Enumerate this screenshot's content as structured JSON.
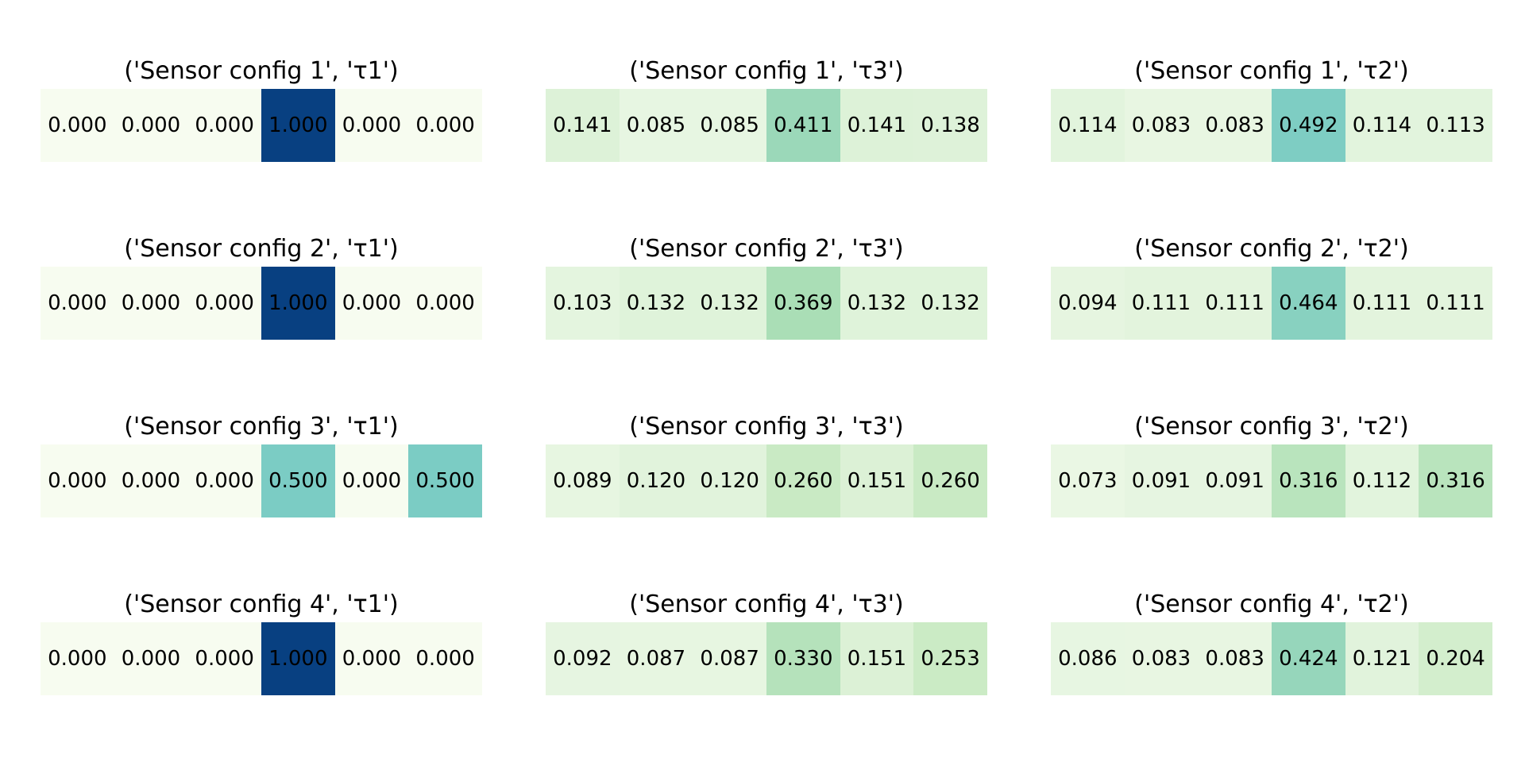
{
  "chart_data": [
    {
      "type": "heatmap",
      "title": "('Sensor config 1', 'τ1')",
      "labels": [
        "0.000",
        "0.000",
        "0.000",
        "1.000",
        "0.000",
        "0.000"
      ],
      "values": [
        0.0,
        0.0,
        0.0,
        1.0,
        0.0,
        0.0
      ]
    },
    {
      "type": "heatmap",
      "title": "('Sensor config 1', 'τ3')",
      "labels": [
        "0.141",
        "0.085",
        "0.085",
        "0.411",
        "0.141",
        "0.138"
      ],
      "values": [
        0.141,
        0.085,
        0.085,
        0.411,
        0.141,
        0.138
      ]
    },
    {
      "type": "heatmap",
      "title": "('Sensor config 1', 'τ2')",
      "labels": [
        "0.114",
        "0.083",
        "0.083",
        "0.492",
        "0.114",
        "0.113"
      ],
      "values": [
        0.114,
        0.083,
        0.083,
        0.492,
        0.114,
        0.113
      ]
    },
    {
      "type": "heatmap",
      "title": "('Sensor config 2', 'τ1')",
      "labels": [
        "0.000",
        "0.000",
        "0.000",
        "1.000",
        "0.000",
        "0.000"
      ],
      "values": [
        0.0,
        0.0,
        0.0,
        1.0,
        0.0,
        0.0
      ]
    },
    {
      "type": "heatmap",
      "title": "('Sensor config 2', 'τ3')",
      "labels": [
        "0.103",
        "0.132",
        "0.132",
        "0.369",
        "0.132",
        "0.132"
      ],
      "values": [
        0.103,
        0.132,
        0.132,
        0.369,
        0.132,
        0.132
      ]
    },
    {
      "type": "heatmap",
      "title": "('Sensor config 2', 'τ2')",
      "labels": [
        "0.094",
        "0.111",
        "0.111",
        "0.464",
        "0.111",
        "0.111"
      ],
      "values": [
        0.094,
        0.111,
        0.111,
        0.464,
        0.111,
        0.111
      ]
    },
    {
      "type": "heatmap",
      "title": "('Sensor config 3', 'τ1')",
      "labels": [
        "0.000",
        "0.000",
        "0.000",
        "0.500",
        "0.000",
        "0.500"
      ],
      "values": [
        0.0,
        0.0,
        0.0,
        0.5,
        0.0,
        0.5
      ]
    },
    {
      "type": "heatmap",
      "title": "('Sensor config 3', 'τ3')",
      "labels": [
        "0.089",
        "0.120",
        "0.120",
        "0.260",
        "0.151",
        "0.260"
      ],
      "values": [
        0.089,
        0.12,
        0.12,
        0.26,
        0.151,
        0.26
      ]
    },
    {
      "type": "heatmap",
      "title": "('Sensor config 3', 'τ2')",
      "labels": [
        "0.073",
        "0.091",
        "0.091",
        "0.316",
        "0.112",
        "0.316"
      ],
      "values": [
        0.073,
        0.091,
        0.091,
        0.316,
        0.112,
        0.316
      ]
    },
    {
      "type": "heatmap",
      "title": "('Sensor config 4', 'τ1')",
      "labels": [
        "0.000",
        "0.000",
        "0.000",
        "1.000",
        "0.000",
        "0.000"
      ],
      "values": [
        0.0,
        0.0,
        0.0,
        1.0,
        0.0,
        0.0
      ]
    },
    {
      "type": "heatmap",
      "title": "('Sensor config 4', 'τ3')",
      "labels": [
        "0.092",
        "0.087",
        "0.087",
        "0.330",
        "0.151",
        "0.253"
      ],
      "values": [
        0.092,
        0.087,
        0.087,
        0.33,
        0.151,
        0.253
      ]
    },
    {
      "type": "heatmap",
      "title": "('Sensor config 4', 'τ2')",
      "labels": [
        "0.086",
        "0.083",
        "0.083",
        "0.424",
        "0.121",
        "0.204"
      ],
      "values": [
        0.086,
        0.083,
        0.083,
        0.424,
        0.121,
        0.204
      ]
    }
  ],
  "colorscale": {
    "stops": [
      "#f7fcf0",
      "#e0f3db",
      "#ccebc5",
      "#a8ddb5",
      "#7bccc4",
      "#4eb3d3",
      "#2b8cbe",
      "#0868ac",
      "#084081"
    ],
    "vmin": 0,
    "vmax": 1
  }
}
